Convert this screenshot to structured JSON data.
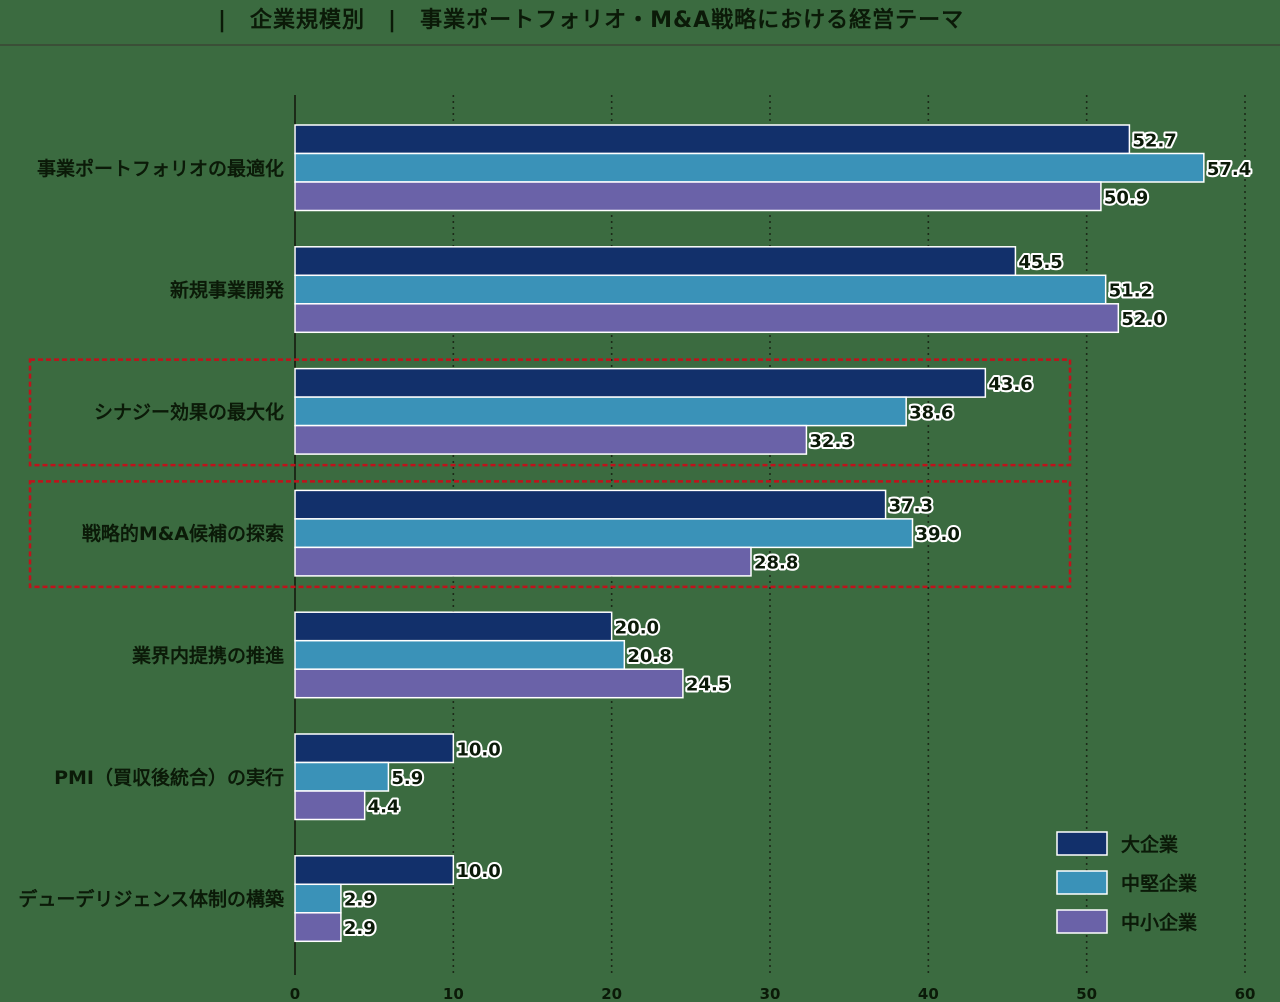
{
  "title": "|　企業規模別　|　事業ポートフォリオ・M&A戦略における経営テーマ",
  "chart_data": {
    "type": "bar",
    "orientation": "horizontal",
    "categories": [
      "事業ポートフォリオの最適化",
      "新規事業開発",
      "シナジー効果の最大化",
      "戦略的M&A候補の探索",
      "業界内提携の推進",
      "PMI（買収後統合）の実行",
      "デューデリジェンス体制の構築"
    ],
    "series": [
      {
        "name": "大企業",
        "color": "#12306b",
        "values": [
          52.7,
          45.5,
          43.6,
          37.3,
          20.0,
          10.0,
          10.0
        ]
      },
      {
        "name": "中堅企業",
        "color": "#3a92b8",
        "values": [
          57.4,
          51.2,
          38.6,
          39.0,
          20.8,
          5.9,
          2.9
        ]
      },
      {
        "name": "中小企業",
        "color": "#6a62a8",
        "values": [
          50.9,
          52.0,
          32.3,
          28.8,
          24.5,
          4.4,
          2.9
        ]
      }
    ],
    "xlim": [
      0,
      60
    ],
    "xticks": [
      0,
      10,
      20,
      30,
      40,
      50,
      60
    ],
    "grid": "vertical dotted",
    "legend_position": "bottom-right",
    "highlighted_categories": [
      "シナジー効果の最大化",
      "戦略的M&A候補の探索"
    ],
    "highlight_color": "#c0121b",
    "bar_outline_color": "#ffffff",
    "text_color": "#0b1a08",
    "background_color": "#3b6b40"
  }
}
